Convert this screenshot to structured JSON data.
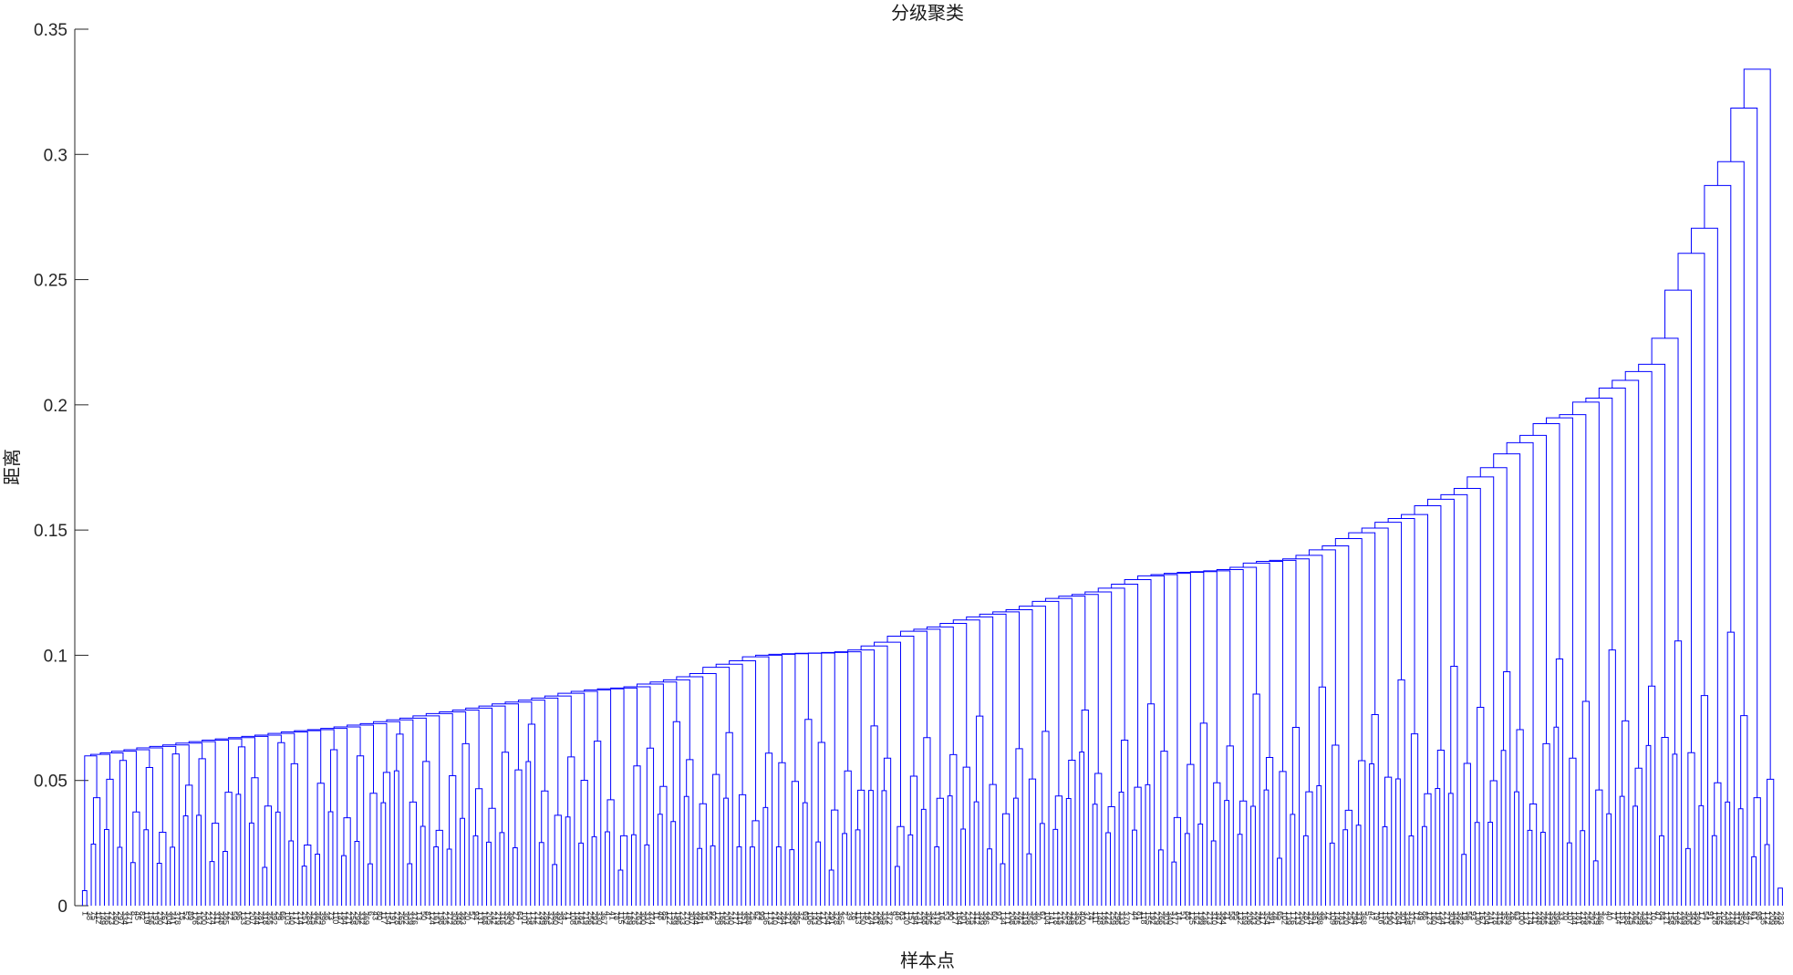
{
  "chart_data": {
    "type": "dendrogram",
    "title": "分级聚类",
    "xlabel": "样本点",
    "ylabel": "距离",
    "ylim": [
      0,
      0.35
    ],
    "yticks": [
      0,
      0.05,
      0.1,
      0.15,
      0.2,
      0.25,
      0.3,
      0.35
    ],
    "ytick_labels": [
      "0",
      "0.05",
      "0.1",
      "0.15",
      "0.2",
      "0.25",
      "0.3",
      "0.35"
    ],
    "grid": false,
    "link_color": "#0000ff",
    "root_height": 0.334,
    "chain_merge_heights": [
      0.334,
      0.3185,
      0.2971,
      0.2876,
      0.2705,
      0.2605,
      0.2458,
      0.2266,
      0.2162,
      0.2133,
      0.2098,
      0.2067,
      0.2027,
      0.2011,
      0.1961,
      0.1948,
      0.1925,
      0.1878,
      0.1849,
      0.1804,
      0.1749,
      0.1712,
      0.1666,
      0.1641,
      0.1623,
      0.1597,
      0.1562,
      0.1546,
      0.1531,
      0.1508,
      0.1489,
      0.1466,
      0.1437,
      0.1421,
      0.1399,
      0.1385,
      0.1379,
      0.1375,
      0.1368,
      0.1351,
      0.1342,
      0.1337,
      0.1334,
      0.1331,
      0.1327,
      0.1322,
      0.1317,
      0.1302,
      0.1284,
      0.1268,
      0.1253,
      0.1243,
      0.1236,
      0.1227,
      0.1215,
      0.1196,
      0.1182,
      0.1173,
      0.1164,
      0.1153,
      0.1141,
      0.1127,
      0.1113,
      0.1104,
      0.1096,
      0.1076,
      0.1052,
      0.1037,
      0.1021,
      0.1014,
      0.1011,
      0.1009,
      0.1008,
      0.1006,
      0.1004,
      0.1,
      0.0994,
      0.0978,
      0.0964,
      0.0952,
      0.0927,
      0.0914,
      0.0902,
      0.0893,
      0.0885,
      0.0874,
      0.0869,
      0.0866,
      0.0862,
      0.0856,
      0.0848,
      0.0837,
      0.0829,
      0.0821,
      0.0813,
      0.0806,
      0.0797,
      0.0789,
      0.0781,
      0.0774,
      0.0767,
      0.0758,
      0.0749,
      0.0742,
      0.0735,
      0.0727,
      0.0721,
      0.0714,
      0.0708,
      0.0703,
      0.0699,
      0.0694,
      0.0688,
      0.0681,
      0.0676,
      0.0671,
      0.0666,
      0.0661,
      0.0655,
      0.0649,
      0.0642,
      0.0636,
      0.063,
      0.0623,
      0.0617,
      0.061,
      0.0604,
      0.0598
    ],
    "subcluster_heights": [
      0.0431,
      0.0505,
      0.0612,
      0.0374,
      0.0552,
      0.0293,
      0.0668,
      0.0481,
      0.0587,
      0.0329,
      0.0453,
      0.0634,
      0.0511,
      0.0398,
      0.0702,
      0.0567,
      0.0242,
      0.0489,
      0.0623,
      0.0351,
      0.0598,
      0.0449,
      0.0532,
      0.0685,
      0.0414,
      0.0576,
      0.0301,
      0.0519,
      0.0647,
      0.0467,
      0.0389,
      0.0613,
      0.0542,
      0.0725,
      0.0458,
      0.0361,
      0.0594,
      0.0501,
      0.0657,
      0.0423,
      0.0279,
      0.0558,
      0.0629,
      0.0476,
      0.0735,
      0.0583,
      0.0407,
      0.0524,
      0.0691,
      0.0443,
      0.0339,
      0.0609,
      0.0571,
      0.0496,
      0.0744,
      0.0652,
      0.0382,
      0.0538,
      0.0461,
      0.0718,
      0.0589,
      0.0316,
      0.0517,
      0.0671,
      0.0429,
      0.0603,
      0.0553,
      0.0757,
      0.0484,
      0.0367,
      0.0627,
      0.0506,
      0.0696,
      0.0438,
      0.0581,
      0.0781,
      0.0528,
      0.0395,
      0.0661,
      0.0473,
      0.0806,
      0.0617,
      0.0352,
      0.0564,
      0.0729,
      0.0491,
      0.0638,
      0.0418,
      0.0845,
      0.0592,
      0.0536,
      0.0712,
      0.0455,
      0.0873,
      0.0641,
      0.0381,
      0.0579,
      0.0763,
      0.0513,
      0.0902,
      0.0686,
      0.0447,
      0.0621,
      0.0956,
      0.0568,
      0.0792,
      0.0499,
      0.0934,
      0.0703,
      0.0406,
      0.0647,
      0.0985,
      0.0589,
      0.0816,
      0.0462,
      0.1021,
      0.0738,
      0.0549,
      0.0877,
      0.0672,
      0.1057,
      0.0611,
      0.0839,
      0.0491,
      0.1092,
      0.0759
    ]
  }
}
